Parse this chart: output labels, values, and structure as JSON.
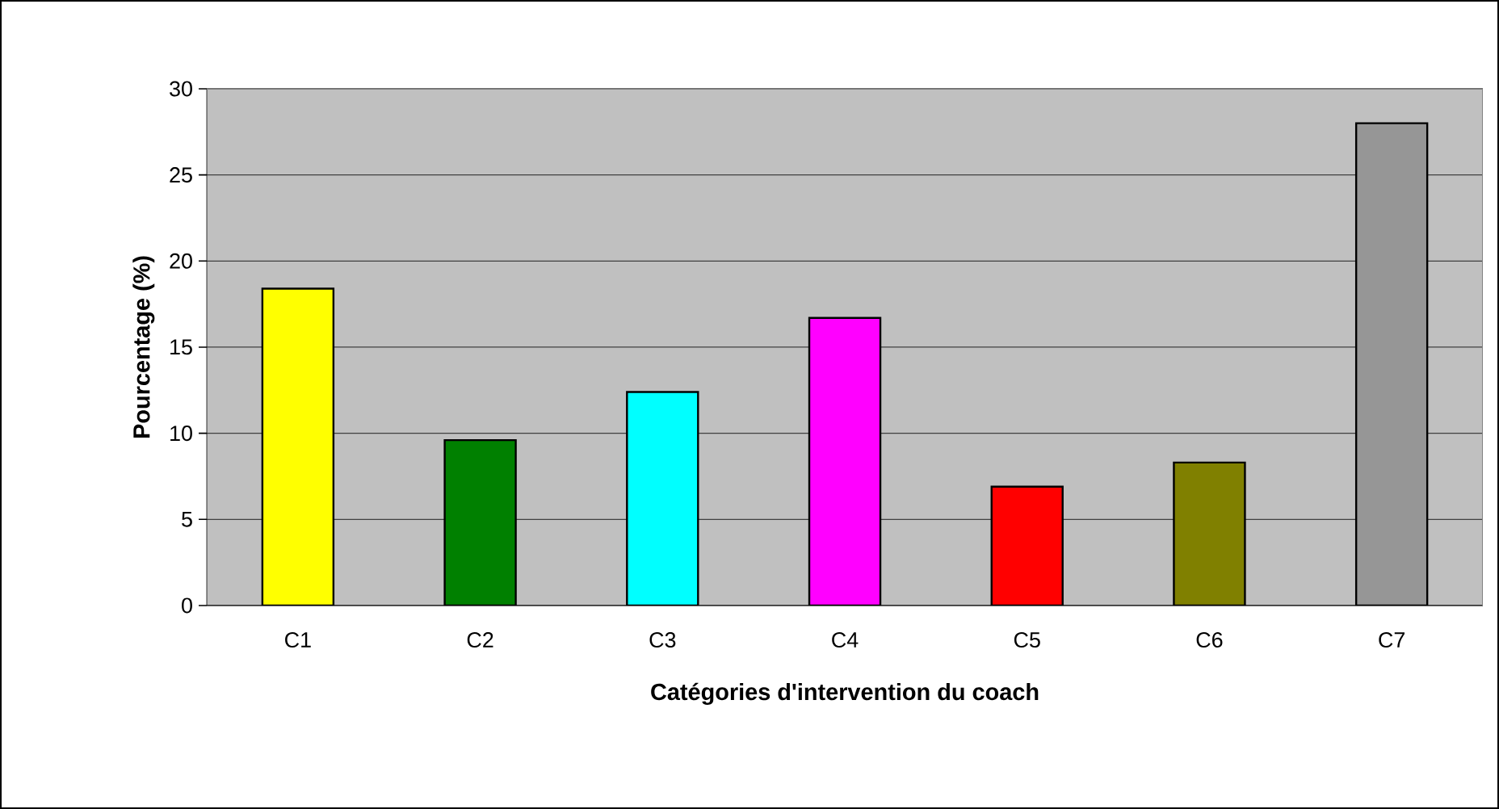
{
  "chart_data": {
    "type": "bar",
    "xlabel": "Catégories d'intervention du coach",
    "ylabel": "Pourcentage (%)",
    "categories": [
      "C1",
      "C2",
      "C3",
      "C4",
      "C5",
      "C6",
      "C7"
    ],
    "values": [
      18.4,
      9.6,
      12.4,
      16.7,
      6.9,
      8.3,
      28.0
    ],
    "colors": [
      "#ffff00",
      "#008000",
      "#00ffff",
      "#ff00ff",
      "#ff0000",
      "#808000",
      "#969696"
    ],
    "ylim": [
      0,
      30
    ],
    "yticks": [
      0,
      5,
      10,
      15,
      20,
      25,
      30
    ],
    "grid": "y"
  }
}
